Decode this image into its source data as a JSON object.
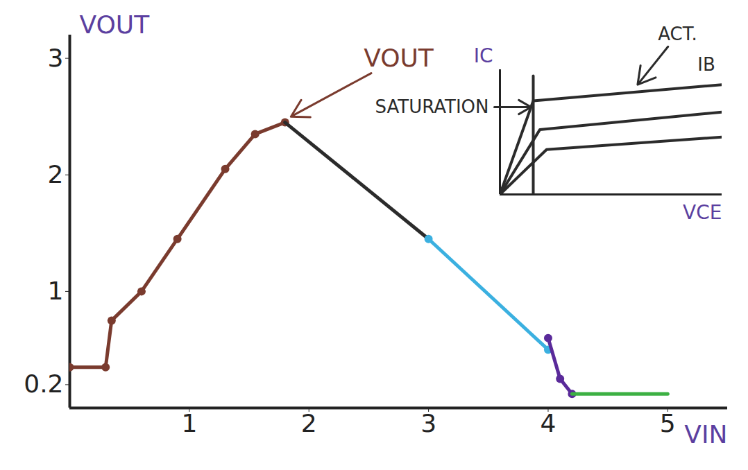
{
  "chart_data": [
    {
      "type": "line",
      "xlabel": "VIN",
      "ylabel": "VOUT",
      "xlim": [
        0,
        5.5
      ],
      "ylim": [
        0,
        3.2
      ],
      "xticks": [
        1,
        2,
        3,
        4,
        5
      ],
      "yticks": [
        0.2,
        1,
        2,
        3
      ],
      "series": [
        {
          "color": "#7a3b2e",
          "marker": "circle",
          "x": [
            0,
            0.3,
            0.35,
            0.6,
            0.9,
            1.3,
            1.55,
            1.8
          ],
          "values": [
            0.35,
            0.35,
            0.75,
            1.0,
            1.45,
            2.05,
            2.35,
            2.45
          ]
        },
        {
          "color": "#2b2b2b",
          "x": [
            1.8,
            3
          ],
          "values": [
            2.45,
            1.45
          ]
        },
        {
          "color": "#3bb0e0",
          "marker": "circle",
          "x": [
            3,
            4
          ],
          "values": [
            1.45,
            0.5
          ]
        },
        {
          "color": "#5a2a9a",
          "marker": "circle",
          "x": [
            4,
            4.1,
            4.2
          ],
          "values": [
            0.6,
            0.25,
            0.12
          ]
        },
        {
          "color": "#3cb043",
          "x": [
            4.2,
            5
          ],
          "values": [
            0.12,
            0.12
          ]
        }
      ],
      "annotations": [
        {
          "text": "VOUT",
          "x": 2.75,
          "y": 3.0,
          "color": "#7a3b2e",
          "arrow_to": [
            1.85,
            2.5
          ]
        }
      ]
    },
    {
      "type": "line",
      "xlabel": "VCE",
      "ylabel": "IC",
      "tick_labels": false,
      "xlim": [
        0,
        1
      ],
      "ylim": [
        0,
        1
      ],
      "series": [
        {
          "color": "#2b2b2b",
          "x": [
            0,
            0.15,
            1
          ],
          "values": [
            0,
            0.75,
            0.88
          ]
        },
        {
          "color": "#2b2b2b",
          "x": [
            0,
            0.18,
            1
          ],
          "values": [
            0,
            0.52,
            0.66
          ]
        },
        {
          "color": "#2b2b2b",
          "x": [
            0,
            0.21,
            1
          ],
          "values": [
            0,
            0.36,
            0.46
          ]
        },
        {
          "color": "#2b2b2b",
          "x": [
            0.15,
            0.15
          ],
          "values": [
            0,
            0.95
          ]
        }
      ],
      "annotations": [
        {
          "text": "SATURATION",
          "x": -0.05,
          "y": 0.7,
          "color": "#2b2b2b",
          "arrow_to": [
            0.14,
            0.7
          ]
        },
        {
          "text": "ACT.",
          "x": 0.8,
          "y": 1.28,
          "color": "#2b2b2b",
          "arrow_to": [
            0.62,
            0.88
          ]
        },
        {
          "text": "IB",
          "x": 0.93,
          "y": 1.04,
          "color": "#2b2b2b"
        }
      ]
    }
  ]
}
